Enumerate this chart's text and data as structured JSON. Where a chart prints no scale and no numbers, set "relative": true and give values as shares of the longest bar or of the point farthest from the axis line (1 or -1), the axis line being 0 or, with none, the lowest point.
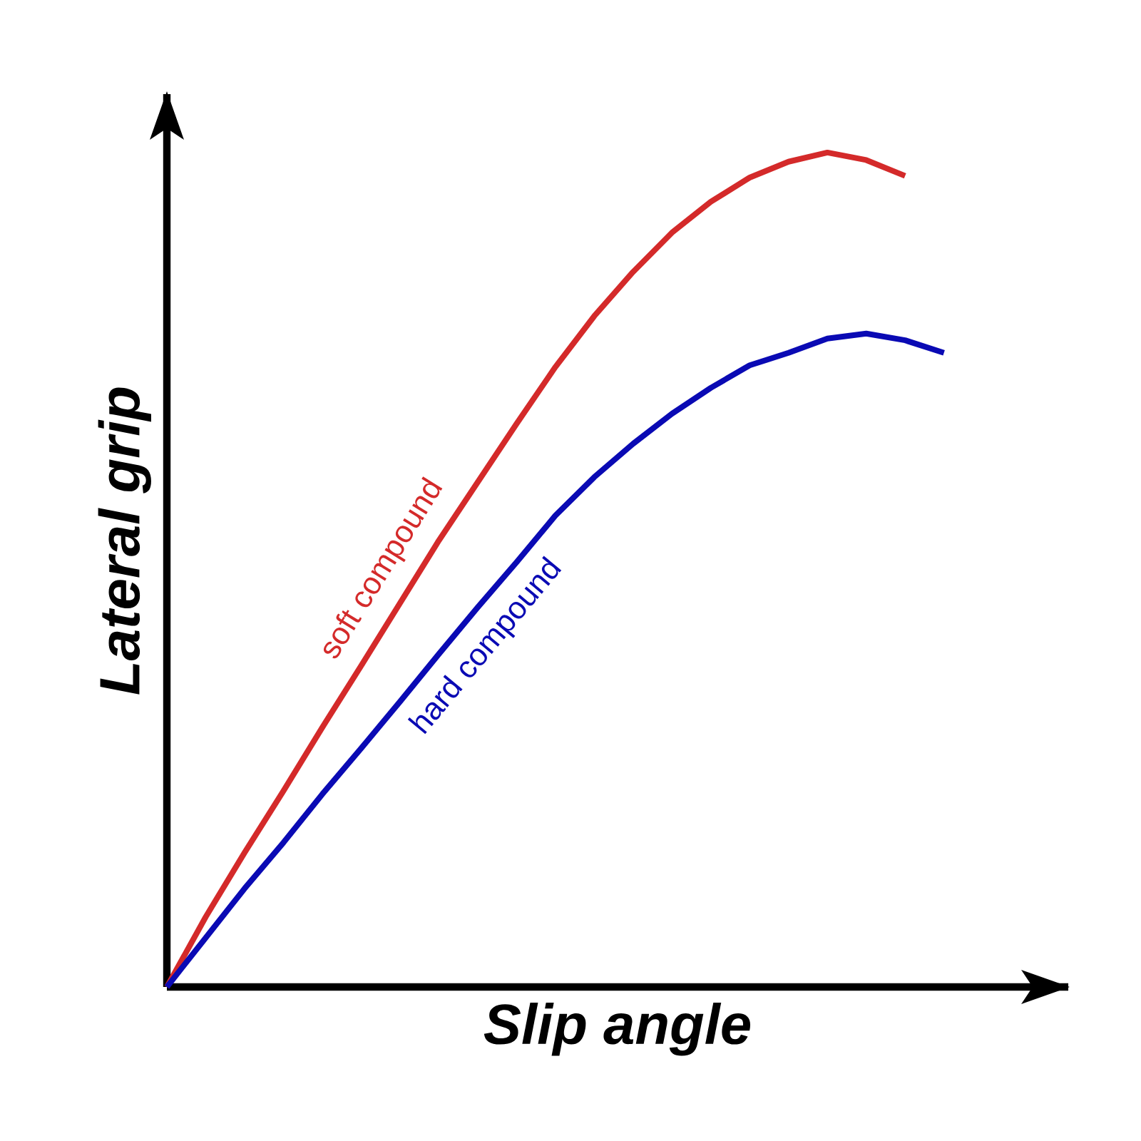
{
  "chart_data": {
    "type": "line",
    "relative": true,
    "xlabel": "Slip angle",
    "ylabel": "Lateral grip",
    "marker": "none",
    "line_style": "solid",
    "categories": [
      null,
      null,
      null,
      null,
      null,
      null,
      null,
      null,
      null,
      null,
      null,
      null,
      null,
      null,
      null,
      null,
      null,
      null,
      null,
      null,
      null
    ],
    "series": [
      {
        "name": "soft compound",
        "color": "#d42a2a",
        "values": [
          0,
          0.084,
          0.161,
          0.235,
          0.311,
          0.385,
          0.46,
          0.535,
          0.605,
          0.675,
          0.743,
          0.804,
          0.857,
          0.904,
          0.941,
          0.97,
          0.989,
          1,
          0.991,
          0.972,
          null
        ]
      },
      {
        "name": "hard compound",
        "color": "#0a0ab4",
        "values": [
          0,
          0.059,
          0.118,
          0.173,
          0.231,
          0.286,
          0.342,
          0.399,
          0.455,
          0.509,
          0.565,
          0.611,
          0.651,
          0.687,
          0.718,
          0.745,
          0.76,
          0.777,
          0.783,
          0.775,
          0.76
        ]
      }
    ]
  }
}
